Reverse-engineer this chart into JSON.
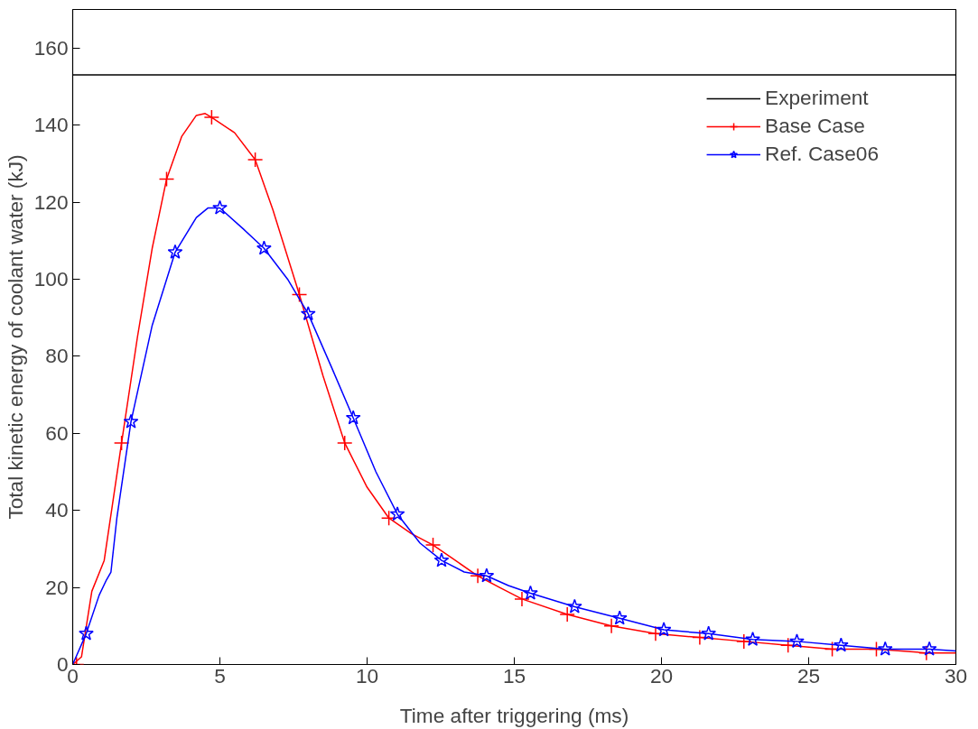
{
  "chart_data": {
    "type": "line",
    "xlabel": "Time after triggering (ms)",
    "ylabel": "Total kinetic energy of coolant water (kJ)",
    "xlim": [
      0,
      30
    ],
    "ylim": [
      0,
      170
    ],
    "xticks": [
      0,
      5,
      10,
      15,
      20,
      25,
      30
    ],
    "yticks": [
      0,
      20,
      40,
      60,
      80,
      100,
      120,
      140,
      160
    ],
    "grid": false,
    "legend": "top right",
    "series": [
      {
        "name": "Experiment",
        "color": "#000000",
        "marker": "none",
        "x": [
          0,
          30
        ],
        "values": [
          153,
          153
        ]
      },
      {
        "color": "#ff0000",
        "marker": "none",
        "x": [
          0,
          0.3,
          0.65,
          1.07,
          1.66,
          2.2,
          2.7,
          3.19,
          3.7,
          4.2,
          4.5,
          4.72,
          5.5,
          6.2,
          6.8,
          7.7,
          8.5,
          9.24,
          10,
          10.74,
          11.5,
          12.24,
          13,
          13.76,
          14.5,
          15.26,
          16.8,
          18.3,
          19.8,
          21.3,
          22.8,
          24.3,
          25.8,
          27.3,
          29.0,
          30
        ],
        "values": [
          0,
          2,
          19,
          27,
          57.5,
          85,
          108,
          126,
          137,
          142.5,
          143,
          142,
          138,
          131,
          118,
          96,
          75,
          57.5,
          46,
          38,
          34,
          31,
          27,
          23,
          20,
          17,
          13,
          10,
          8,
          7,
          6,
          5,
          4,
          4,
          3,
          3
        ]
      },
      {
        "name": "Base Case",
        "type": "scatter",
        "color": "#ff0000",
        "marker": "cross",
        "x": [
          0.13,
          1.66,
          3.19,
          4.72,
          6.2,
          7.7,
          9.24,
          10.74,
          12.24,
          13.76,
          15.26,
          16.8,
          18.3,
          19.8,
          21.3,
          22.8,
          24.3,
          25.8,
          27.3,
          29.0
        ],
        "values": [
          0,
          57.5,
          126,
          142,
          131,
          96,
          57.5,
          38,
          31,
          23,
          17,
          13,
          10,
          8,
          7,
          6,
          5,
          4,
          4,
          3
        ]
      },
      {
        "color": "#0000ff",
        "marker": "none",
        "x": [
          0,
          0.46,
          0.9,
          1.15,
          1.3,
          1.5,
          1.98,
          2.7,
          3.48,
          4.2,
          4.6,
          5.0,
          5.8,
          6.5,
          7.3,
          8.0,
          8.8,
          9.53,
          10.3,
          11.03,
          11.8,
          12.53,
          13.3,
          14.06,
          14.8,
          15.55,
          17.05,
          18.58,
          20.08,
          21.6,
          23.1,
          24.6,
          26.1,
          27.6,
          29.1,
          30
        ],
        "values": [
          0,
          8,
          18,
          22,
          24,
          38,
          63,
          88,
          107,
          116,
          118.5,
          118.5,
          113,
          108,
          100,
          91,
          77,
          64,
          50,
          39,
          31.5,
          27,
          24,
          23,
          20.5,
          18.5,
          15,
          12,
          9,
          8,
          6.5,
          6,
          5,
          4,
          4,
          3.5
        ]
      },
      {
        "name": "Ref. Case06",
        "type": "scatter",
        "color": "#0000ff",
        "marker": "star",
        "x": [
          0.46,
          1.98,
          3.48,
          5.0,
          6.5,
          8.0,
          9.53,
          11.03,
          12.53,
          14.06,
          15.55,
          17.05,
          18.58,
          20.08,
          21.6,
          23.1,
          24.6,
          26.1,
          27.6,
          29.1
        ],
        "values": [
          8,
          63,
          107,
          118.5,
          108,
          91,
          64,
          39,
          27,
          23,
          18.5,
          15,
          12,
          9,
          8,
          6.5,
          6,
          5,
          4,
          4
        ]
      }
    ]
  }
}
